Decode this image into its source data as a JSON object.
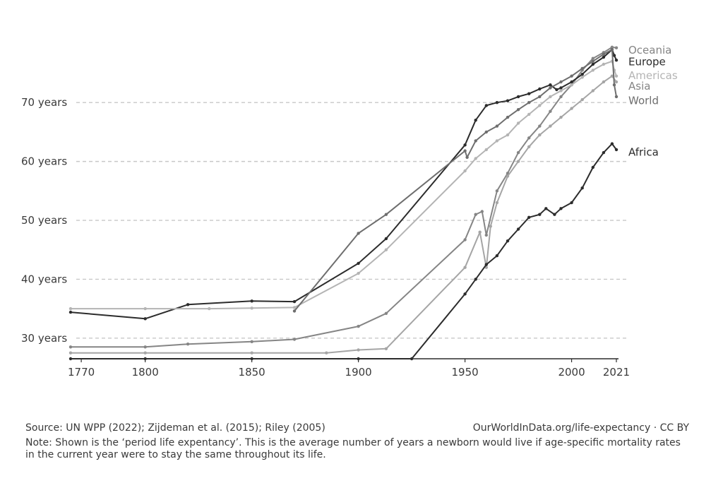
{
  "chart_data": {
    "type": "line",
    "title": "",
    "xlabel": "",
    "ylabel": "",
    "xlim": [
      1765,
      2022
    ],
    "ylim": [
      26.5,
      79.5
    ],
    "x_ticks": [
      1770,
      1800,
      1850,
      1900,
      1950,
      2000,
      2021
    ],
    "x_tick_labels": [
      "1770",
      "1800",
      "1850",
      "1900",
      "1950",
      "2000",
      "2021"
    ],
    "y_ticks": [
      30,
      40,
      50,
      60,
      70
    ],
    "y_tick_labels": [
      "30 years",
      "40 years",
      "50 years",
      "60 years",
      "70 years"
    ],
    "grid": "horizontal dashed",
    "legend": "labels at line ends, right",
    "series": [
      {
        "name": "Oceania",
        "color": "#858585",
        "points": [
          [
            1765,
            28.5
          ],
          [
            1800,
            28.5
          ],
          [
            1820,
            29.0
          ],
          [
            1850,
            29.4
          ],
          [
            1870,
            29.8
          ],
          [
            1900,
            32.0
          ],
          [
            1913,
            34.2
          ],
          [
            1950,
            46.7
          ],
          [
            1955,
            51.0
          ],
          [
            1958,
            51.5
          ],
          [
            1960,
            47.5
          ],
          [
            1965,
            55.0
          ],
          [
            1970,
            58.0
          ],
          [
            1975,
            61.5
          ],
          [
            1980,
            64.0
          ],
          [
            1985,
            66.0
          ],
          [
            1990,
            68.5
          ],
          [
            1995,
            71.0
          ],
          [
            2000,
            73.0
          ],
          [
            2005,
            75.5
          ],
          [
            2010,
            77.5
          ],
          [
            2015,
            78.5
          ],
          [
            2019,
            79.4
          ],
          [
            2021,
            79.3
          ]
        ]
      },
      {
        "name": "Europe",
        "color": "#2c2c2c",
        "points": [
          [
            1765,
            34.4
          ],
          [
            1800,
            33.3
          ],
          [
            1820,
            35.7
          ],
          [
            1850,
            36.3
          ],
          [
            1870,
            36.2
          ],
          [
            1900,
            42.7
          ],
          [
            1913,
            46.9
          ],
          [
            1950,
            62.8
          ],
          [
            1955,
            67.0
          ],
          [
            1960,
            69.5
          ],
          [
            1965,
            70.0
          ],
          [
            1970,
            70.3
          ],
          [
            1975,
            71.0
          ],
          [
            1980,
            71.5
          ],
          [
            1985,
            72.3
          ],
          [
            1990,
            73.0
          ],
          [
            1993,
            72.2
          ],
          [
            1995,
            72.5
          ],
          [
            2000,
            73.5
          ],
          [
            2005,
            74.8
          ],
          [
            2010,
            76.5
          ],
          [
            2015,
            77.7
          ],
          [
            2019,
            79.0
          ],
          [
            2020,
            78.0
          ],
          [
            2021,
            77.2
          ]
        ]
      },
      {
        "name": "Americas",
        "color": "#b4b4b4",
        "points": [
          [
            1765,
            35.0
          ],
          [
            1800,
            35.0
          ],
          [
            1830,
            35.0
          ],
          [
            1850,
            35.1
          ],
          [
            1870,
            35.2
          ],
          [
            1900,
            41.0
          ],
          [
            1913,
            45.0
          ],
          [
            1950,
            58.4
          ],
          [
            1955,
            60.5
          ],
          [
            1960,
            62.0
          ],
          [
            1965,
            63.5
          ],
          [
            1970,
            64.5
          ],
          [
            1975,
            66.5
          ],
          [
            1980,
            68.0
          ],
          [
            1985,
            69.5
          ],
          [
            1990,
            71.0
          ],
          [
            1995,
            72.0
          ],
          [
            2000,
            73.0
          ],
          [
            2005,
            74.3
          ],
          [
            2010,
            75.5
          ],
          [
            2015,
            76.5
          ],
          [
            2019,
            77.0
          ],
          [
            2020,
            75.5
          ],
          [
            2021,
            74.5
          ]
        ]
      },
      {
        "name": "Asia",
        "color": "#a5a5a5",
        "points": [
          [
            1765,
            27.5
          ],
          [
            1800,
            27.5
          ],
          [
            1850,
            27.5
          ],
          [
            1885,
            27.5
          ],
          [
            1900,
            28.0
          ],
          [
            1913,
            28.2
          ],
          [
            1950,
            42.0
          ],
          [
            1957,
            48.0
          ],
          [
            1960,
            42.0
          ],
          [
            1962,
            49.0
          ],
          [
            1965,
            53.0
          ],
          [
            1970,
            57.5
          ],
          [
            1975,
            60.0
          ],
          [
            1980,
            62.5
          ],
          [
            1985,
            64.5
          ],
          [
            1990,
            66.0
          ],
          [
            1995,
            67.5
          ],
          [
            2000,
            69.0
          ],
          [
            2005,
            70.5
          ],
          [
            2010,
            72.0
          ],
          [
            2015,
            73.5
          ],
          [
            2019,
            74.5
          ],
          [
            2021,
            73.5
          ]
        ]
      },
      {
        "name": "World",
        "color": "#6e6e6e",
        "points": [
          [
            1870,
            34.6
          ],
          [
            1900,
            47.8
          ],
          [
            1913,
            51.0
          ],
          [
            1950,
            61.8
          ],
          [
            1951,
            60.7
          ],
          [
            1955,
            63.5
          ],
          [
            1960,
            65.0
          ],
          [
            1965,
            66.0
          ],
          [
            1970,
            67.5
          ],
          [
            1975,
            68.8
          ],
          [
            1980,
            70.0
          ],
          [
            1985,
            71.0
          ],
          [
            1990,
            72.5
          ],
          [
            1995,
            73.5
          ],
          [
            2000,
            74.5
          ],
          [
            2005,
            75.8
          ],
          [
            2010,
            77.0
          ],
          [
            2015,
            78.2
          ],
          [
            2019,
            79.0
          ],
          [
            2020,
            73.0
          ],
          [
            2021,
            71.0
          ]
        ]
      },
      {
        "name": "Africa",
        "color": "#2c2c2c",
        "points": [
          [
            1765,
            26.5
          ],
          [
            1800,
            26.5
          ],
          [
            1850,
            26.5
          ],
          [
            1900,
            26.5
          ],
          [
            1925,
            26.5
          ],
          [
            1950,
            37.5
          ],
          [
            1955,
            40.0
          ],
          [
            1960,
            42.5
          ],
          [
            1965,
            44.0
          ],
          [
            1970,
            46.5
          ],
          [
            1975,
            48.5
          ],
          [
            1980,
            50.5
          ],
          [
            1985,
            51.0
          ],
          [
            1988,
            52.0
          ],
          [
            1992,
            51.0
          ],
          [
            1995,
            52.0
          ],
          [
            2000,
            53.0
          ],
          [
            2005,
            55.5
          ],
          [
            2010,
            59.0
          ],
          [
            2015,
            61.5
          ],
          [
            2019,
            63.0
          ],
          [
            2021,
            62.0
          ]
        ]
      }
    ]
  },
  "series_labels": [
    {
      "name": "Oceania",
      "color": "#858585",
      "label_y": 78.9
    },
    {
      "name": "Europe",
      "color": "#2c2c2c",
      "label_y": 76.9
    },
    {
      "name": "Americas",
      "color": "#b4b4b4",
      "label_y": 74.6
    },
    {
      "name": "Asia",
      "color": "#858585",
      "label_y": 72.8
    },
    {
      "name": "World",
      "color": "#6e6e6e",
      "label_y": 70.3
    },
    {
      "name": "Africa",
      "color": "#2c2c2c",
      "label_y": 61.6
    }
  ],
  "footer": {
    "source": "Source: UN WPP (2022);  Zijdeman et al. (2015); Riley (2005)",
    "url": "OurWorldInData.org/life-expectancy · CC BY",
    "note": "Note: Shown is the ‘period life expentancy’. This is the average number of years a newborn would live if age-specific mortality rates in the current year were to stay the same throughout its life."
  }
}
